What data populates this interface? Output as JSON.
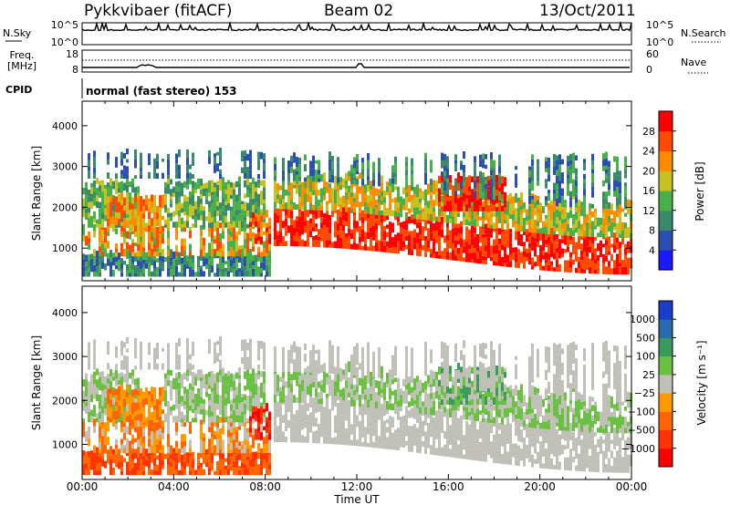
{
  "header": {
    "title": "Pykkvibaer (fitACF)",
    "beam": "Beam 02",
    "date": "13/Oct/2011"
  },
  "panels": {
    "nsky_label": "N.Sky",
    "nsearch_label": "N.Search",
    "freq_label_line1": "Freq.",
    "freq_label_line2": "[MHz]",
    "nave_label": "Nave",
    "cpid_label": "CPID",
    "cpid_text": "normal (fast stereo) 153",
    "noise_left_ticks": [
      "10^5",
      "10^0"
    ],
    "noise_right_ticks": [
      "10^5",
      "10^0"
    ],
    "freq_left_ticks": [
      "18",
      "8"
    ],
    "freq_right_ticks": [
      "60",
      "0"
    ]
  },
  "chart_data": [
    {
      "type": "heatmap",
      "name": "power",
      "ylabel": "Slant Range [km]",
      "xlabel": "Time UT",
      "x_ticks": [
        "00:00",
        "04:00",
        "08:00",
        "12:00",
        "16:00",
        "20:00",
        "00:00"
      ],
      "y_ticks": [
        1000,
        2000,
        3000,
        4000
      ],
      "ylim": [
        200,
        4600
      ],
      "colorbar": {
        "label": "Power [dB]",
        "ticks": [
          "4",
          "8",
          "12",
          "16",
          "20",
          "24",
          "28"
        ],
        "colors": [
          "#1a1aff",
          "#2a4fb0",
          "#3a8a6a",
          "#48b048",
          "#c8c020",
          "#ff8c00",
          "#ff4a00",
          "#ff0000"
        ]
      }
    },
    {
      "type": "heatmap",
      "name": "velocity",
      "ylabel": "Slant Range [km]",
      "xlabel": "Time UT",
      "x_ticks": [
        "00:00",
        "04:00",
        "08:00",
        "12:00",
        "16:00",
        "20:00",
        "00:00"
      ],
      "y_ticks": [
        1000,
        2000,
        3000,
        4000
      ],
      "ylim": [
        200,
        4600
      ],
      "colorbar": {
        "label": "Velocity [m s⁻¹]",
        "ticks": [
          "1000",
          "500",
          "100",
          "25",
          "−25",
          "−100",
          "−500",
          "−1000"
        ],
        "colors": [
          "#1a3ec8",
          "#2a6ab0",
          "#3a9a5a",
          "#6ac040",
          "#c0c0b8",
          "#ff9900",
          "#ff6600",
          "#ff3300",
          "#ff0000"
        ]
      }
    }
  ]
}
